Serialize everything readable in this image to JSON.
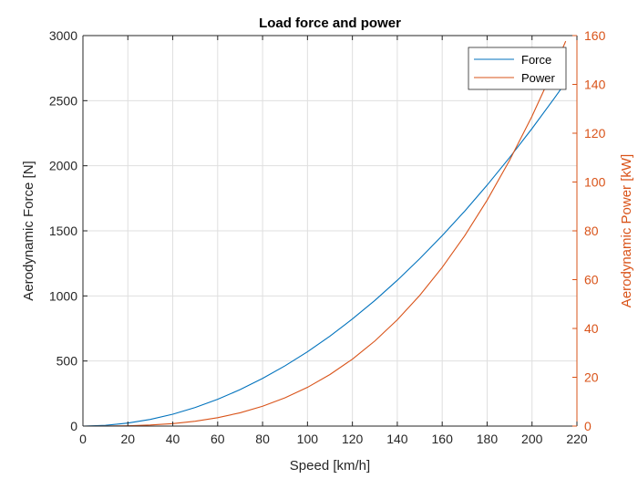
{
  "chart_data": {
    "type": "line",
    "title": "Load force and power",
    "xlabel": "Speed [km/h]",
    "ylabel_left": "Aerodynamic Force [N]",
    "ylabel_right": "Aerodynamic Power [kW]",
    "xlim": [
      0,
      220
    ],
    "ylim_left": [
      0,
      3000
    ],
    "ylim_right": [
      0,
      160
    ],
    "x_ticks": [
      "0",
      "20",
      "40",
      "60",
      "80",
      "100",
      "120",
      "140",
      "160",
      "180",
      "200",
      "220"
    ],
    "y_left_ticks": [
      "0",
      "500",
      "1000",
      "1500",
      "2000",
      "2500",
      "3000"
    ],
    "y_right_ticks": [
      "0",
      "20",
      "40",
      "60",
      "80",
      "100",
      "120",
      "140",
      "160"
    ],
    "grid": true,
    "legend_position": "top-right",
    "x": [
      0,
      10,
      20,
      30,
      40,
      50,
      60,
      70,
      80,
      90,
      100,
      110,
      120,
      130,
      140,
      150,
      160,
      170,
      180,
      190,
      200,
      210,
      215
    ],
    "series": [
      {
        "name": "Force",
        "axis": "left",
        "color": "#0072BD",
        "values": [
          0,
          6,
          23,
          51,
          91,
          143,
          206,
          280,
          366,
          463,
          571,
          691,
          823,
          965,
          1120,
          1286,
          1463,
          1651,
          1851,
          2063,
          2286,
          2520,
          2641
        ]
      },
      {
        "name": "Power",
        "axis": "right",
        "color": "#D95319",
        "values": [
          0,
          0.02,
          0.13,
          0.43,
          1.02,
          1.98,
          3.43,
          5.45,
          8.13,
          11.58,
          15.87,
          21.13,
          27.42,
          34.86,
          43.56,
          53.56,
          65.02,
          77.96,
          92.55,
          108.86,
          126.98,
          147.0,
          157.7
        ]
      }
    ]
  }
}
